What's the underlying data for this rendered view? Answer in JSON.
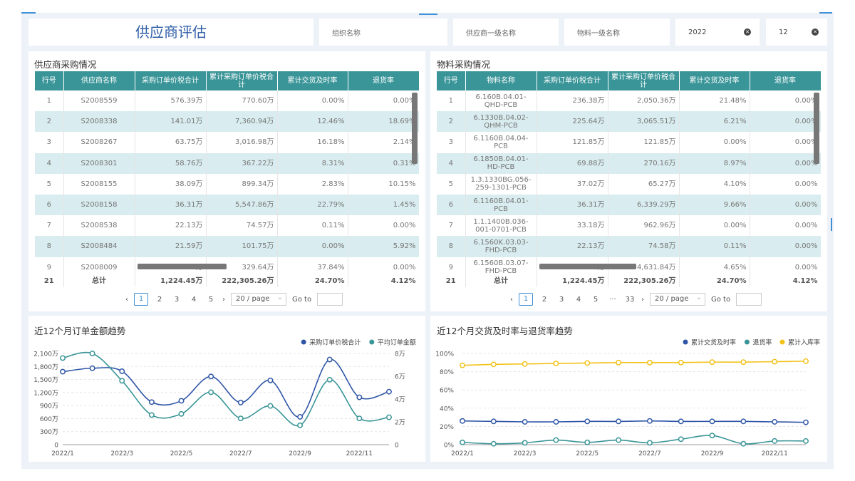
{
  "page_title": "供应商评估",
  "filters": {
    "org": "组织名称",
    "supplier_level1": "供应商一级名称",
    "material_level1": "物料一级名称",
    "year": "2022",
    "month": "12"
  },
  "supplier_table": {
    "title": "供应商采购情况",
    "headers": [
      "行号",
      "供应商名称",
      "采购订单价税合计",
      "累计采购订单价税合计",
      "累计交货及时率",
      "退货率"
    ],
    "rows": [
      [
        "1",
        "S2008559",
        "576.39万",
        "770.60万",
        "0.00%",
        "0.00%"
      ],
      [
        "2",
        "S2008338",
        "141.01万",
        "7,360.94万",
        "12.46%",
        "18.69%"
      ],
      [
        "3",
        "S2008267",
        "63.75万",
        "3,016.98万",
        "16.18%",
        "2.14%"
      ],
      [
        "4",
        "S2008301",
        "58.76万",
        "367.22万",
        "8.31%",
        "0.31%"
      ],
      [
        "5",
        "S2008155",
        "38.09万",
        "899.34万",
        "2.83%",
        "10.15%"
      ],
      [
        "6",
        "S2008158",
        "36.31万",
        "5,547.86万",
        "22.79%",
        "1.45%"
      ],
      [
        "7",
        "S2008538",
        "22.13万",
        "74.57万",
        "0.11%",
        "0.00%"
      ],
      [
        "8",
        "S2008484",
        "21.59万",
        "101.75万",
        "0.00%",
        "5.92%"
      ],
      [
        "9",
        "S2008009",
        "19.52万",
        "329.64万",
        "37.84%",
        "0.00%"
      ]
    ],
    "total": [
      "21",
      "总计",
      "1,224.45万",
      "222,305.26万",
      "24.70%",
      "4.12%"
    ],
    "pager": {
      "pages": [
        "1",
        "2",
        "3",
        "4",
        "5"
      ],
      "active": "1",
      "page_size": "20 / page",
      "goto": "Go to"
    }
  },
  "material_table": {
    "title": "物料采购情况",
    "headers": [
      "行号",
      "物料名称",
      "采购订单价税合计",
      "累计采购订单价税合计",
      "累计交货及时率",
      "退货率"
    ],
    "rows": [
      [
        "1",
        "6.160B.04.01-QHD-PCB",
        "236.38万",
        "2,050.36万",
        "21.48%",
        "0.00%"
      ],
      [
        "2",
        "6.1330B.04.02-QHM-PCB",
        "225.64万",
        "3,065.51万",
        "6.21%",
        "0.00%"
      ],
      [
        "3",
        "6.1160B.04.04-PCB",
        "121.85万",
        "121.85万",
        "0.00%",
        "0.00%"
      ],
      [
        "4",
        "6.1850B.04.01-HD-PCB",
        "69.88万",
        "270.16万",
        "8.97%",
        "0.00%"
      ],
      [
        "5",
        "1.3.1330BG.056-259-1301-PCB",
        "37.02万",
        "65.27万",
        "4.10%",
        "0.00%"
      ],
      [
        "6",
        "6.1160B.04.01-PCB",
        "36.31万",
        "6,339.29万",
        "9.66%",
        "0.00%"
      ],
      [
        "7",
        "1.1.1400B.036-001-0701-PCB",
        "33.18万",
        "962.96万",
        "0.00%",
        "0.00%"
      ],
      [
        "8",
        "6.1560K.03.03-FHD-PCB",
        "22.13万",
        "74.58万",
        "0.11%",
        "0.00%"
      ],
      [
        "9",
        "6.1560B.03.07-FHD-PCB",
        "19.52万",
        "4,631.84万",
        "4.65%",
        "0.00%"
      ]
    ],
    "total": [
      "21",
      "总计",
      "1,224.45万",
      "222,305.26万",
      "24.70%",
      "4.12%"
    ],
    "pager": {
      "pages": [
        "1",
        "2",
        "3",
        "4",
        "5",
        "···",
        "33"
      ],
      "active": "1",
      "page_size": "20 / page",
      "goto": "Go to"
    }
  },
  "chart_data": [
    {
      "type": "line",
      "title": "近12个月订单金额趋势",
      "categories": [
        "2022/1",
        "2022/2",
        "2022/3",
        "2022/4",
        "2022/5",
        "2022/6",
        "2022/7",
        "2022/8",
        "2022/9",
        "2022/10",
        "2022/11",
        "2022/12"
      ],
      "x_tick_labels": [
        "2022/1",
        "2022/3",
        "2022/5",
        "2022/7",
        "2022/9",
        "2022/11"
      ],
      "y_left": {
        "min": 0,
        "max": 2100,
        "ticks": [
          "0",
          "300万",
          "600万",
          "900万",
          "1,200万",
          "1,500万",
          "1,800万",
          "2,100万"
        ]
      },
      "y_right": {
        "min": 0,
        "max": 8,
        "ticks": [
          "0",
          "2万",
          "4万",
          "6万",
          "8万"
        ]
      },
      "series": [
        {
          "name": "采购订单价税合计",
          "axis": "left",
          "color": "#2f56a6",
          "values": [
            1680,
            1760,
            1690,
            980,
            1010,
            1570,
            970,
            1480,
            640,
            1960,
            1090,
            1220
          ]
        },
        {
          "name": "平均订单金额",
          "axis": "right",
          "color": "#3a9598",
          "values": [
            7.6,
            8.0,
            5.6,
            2.6,
            2.7,
            4.6,
            2.3,
            3.4,
            1.7,
            5.7,
            2.3,
            2.4
          ]
        }
      ],
      "legend": "top-right"
    },
    {
      "type": "line",
      "title": "近12个月交货及时率与退货率趋势",
      "categories": [
        "2022/1",
        "2022/2",
        "2022/3",
        "2022/4",
        "2022/5",
        "2022/6",
        "2022/7",
        "2022/8",
        "2022/9",
        "2022/10",
        "2022/11",
        "2022/12"
      ],
      "x_tick_labels": [
        "2022/1",
        "2022/3",
        "2022/5",
        "2022/7",
        "2022/9",
        "2022/11"
      ],
      "y": {
        "min": 0,
        "max": 100,
        "ticks": [
          "0%",
          "20%",
          "40%",
          "60%",
          "80%",
          "100%"
        ]
      },
      "series": [
        {
          "name": "累计交货及时率",
          "color": "#2f56a6",
          "values": [
            26,
            25.5,
            25,
            25,
            25.5,
            25.5,
            26,
            25.5,
            25.5,
            25.5,
            25,
            24.5
          ]
        },
        {
          "name": "退货率",
          "color": "#3a9598",
          "values": [
            2.5,
            1,
            2,
            5,
            2.5,
            5,
            2,
            6,
            10,
            1,
            4,
            4
          ]
        },
        {
          "name": "累计入库率",
          "color": "#f2c21b",
          "values": [
            87,
            88,
            88.5,
            89,
            89.5,
            90,
            90,
            90,
            90.5,
            90.5,
            91,
            91.5
          ]
        }
      ],
      "legend": "top-right"
    }
  ]
}
